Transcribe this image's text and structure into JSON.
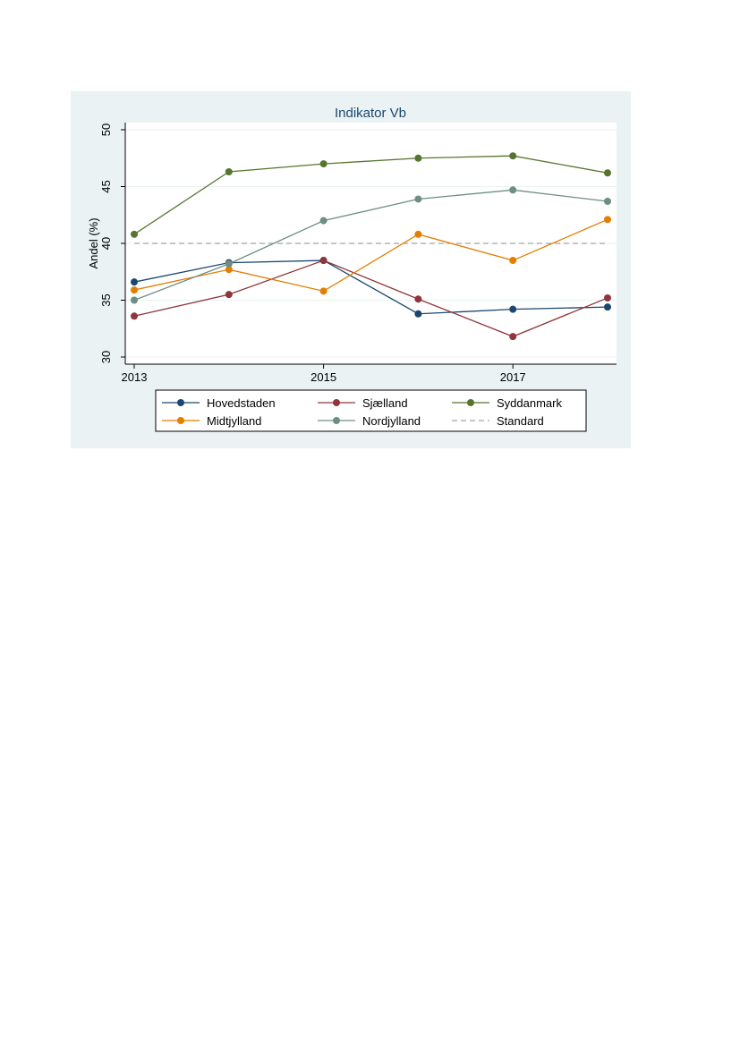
{
  "chart_data": {
    "type": "line",
    "title": "Indikator Vb",
    "title_color": "#1a476f",
    "xlabel": "",
    "ylabel": "Andel (%)",
    "x": [
      2013,
      2014,
      2015,
      2016,
      2017,
      2018
    ],
    "xticks": [
      "2013",
      "2015",
      "2017"
    ],
    "xlim": [
      2013,
      2018
    ],
    "yticks": [
      "30",
      "35",
      "40",
      "45",
      "50"
    ],
    "ylim": [
      30,
      50
    ],
    "grid": true,
    "reference_line": {
      "name": "Standard",
      "value": 40,
      "color": "#8c8c8c"
    },
    "series": [
      {
        "name": "Hovedstaden",
        "color": "#1a476f",
        "values": [
          36.6,
          38.3,
          38.5,
          33.8,
          34.2,
          34.4
        ]
      },
      {
        "name": "Sjælland",
        "color": "#90353b",
        "values": [
          33.6,
          35.5,
          38.5,
          35.1,
          31.8,
          35.2
        ]
      },
      {
        "name": "Syddanmark",
        "color": "#55752f",
        "values": [
          40.8,
          46.3,
          47.0,
          47.5,
          47.7,
          46.2
        ]
      },
      {
        "name": "Midtjylland",
        "color": "#e37e00",
        "values": [
          35.9,
          37.7,
          35.8,
          40.8,
          38.5,
          42.1
        ]
      },
      {
        "name": "Nordjylland",
        "color": "#6e8e84",
        "values": [
          35.0,
          38.2,
          42.0,
          43.9,
          44.7,
          43.7
        ]
      }
    ],
    "legend": {
      "placement": "bottom",
      "entries": [
        "Hovedstaden",
        "Sjælland",
        "Syddanmark",
        "Midtjylland",
        "Nordjylland",
        "Standard"
      ]
    }
  }
}
